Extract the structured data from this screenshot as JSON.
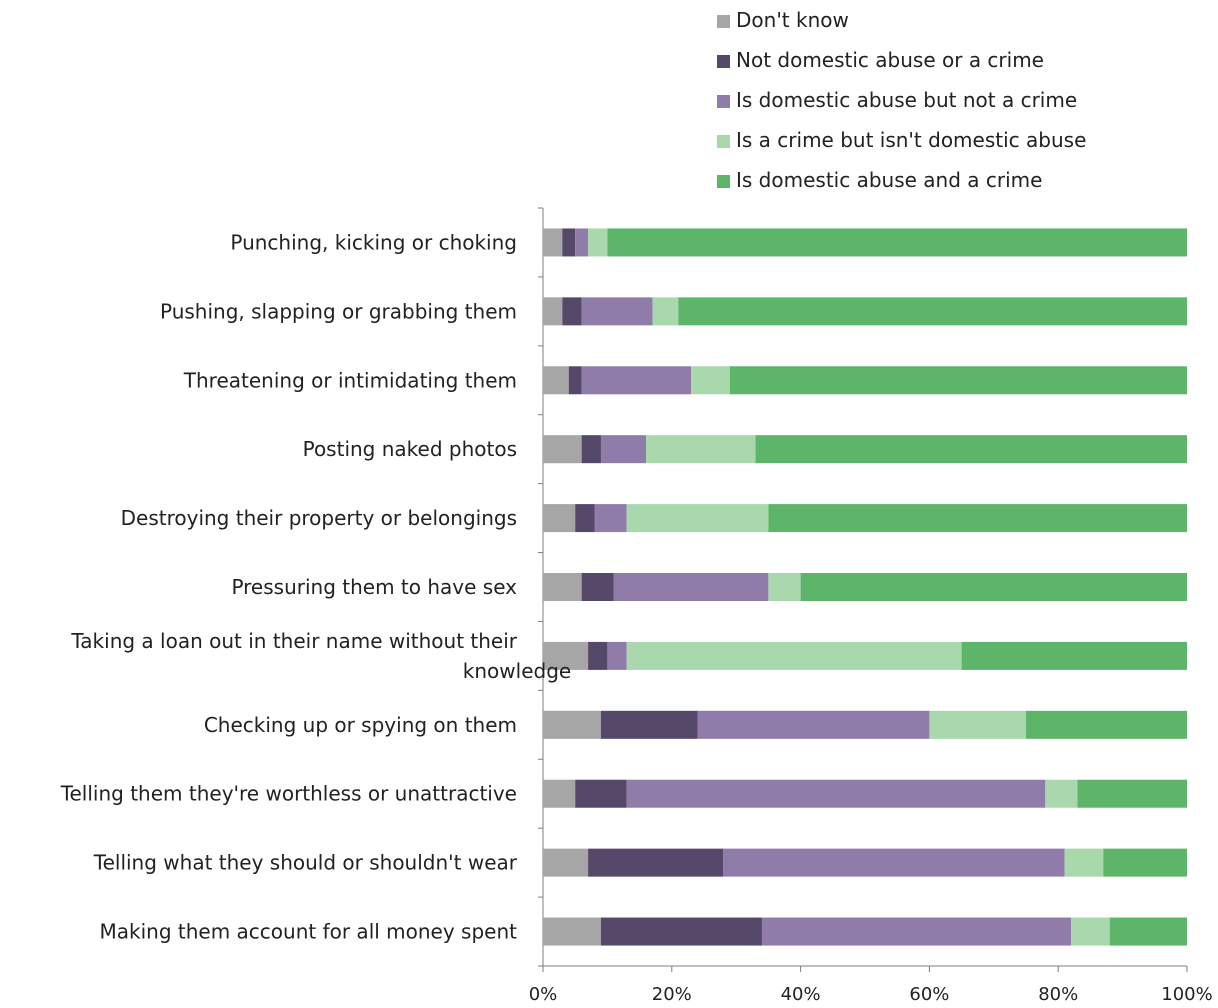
{
  "chart_data": {
    "type": "bar",
    "orientation": "horizontal",
    "stacked": true,
    "title": "",
    "xlabel": "",
    "ylabel": "",
    "xlim": [
      0,
      100
    ],
    "x_ticks": [
      "0%",
      "20%",
      "40%",
      "60%",
      "80%",
      "100%"
    ],
    "grid": false,
    "legend_position": "top-right",
    "categories": [
      "Punching, kicking or choking",
      "Pushing, slapping or grabbing them",
      "Threatening or intimidating them",
      "Posting naked photos",
      "Destroying their property or belongings",
      "Pressuring them to have sex",
      "Taking a loan out in their name without their knowledge",
      "Checking up or spying on them",
      "Telling them they're worthless or unattractive",
      "Telling what they should or shouldn't wear",
      "Making them account for all money spent"
    ],
    "series": [
      {
        "name": "Don't know",
        "color": "#a6a6a6",
        "values": [
          3,
          3,
          4,
          6,
          5,
          6,
          7,
          9,
          5,
          7,
          9
        ]
      },
      {
        "name": "Not domestic abuse or a crime",
        "color": "#564868",
        "values": [
          2,
          3,
          2,
          3,
          3,
          5,
          3,
          15,
          8,
          21,
          25
        ]
      },
      {
        "name": "Is domestic abuse but not a crime",
        "color": "#8f7ca8",
        "values": [
          2,
          11,
          17,
          7,
          5,
          24,
          3,
          36,
          65,
          53,
          48
        ]
      },
      {
        "name": "Is a crime but isn't domestic abuse",
        "color": "#a8d8ac",
        "values": [
          3,
          4,
          6,
          17,
          22,
          5,
          52,
          15,
          5,
          6,
          6
        ]
      },
      {
        "name": "Is domestic abuse and a crime",
        "color": "#5db56a",
        "values": [
          90,
          79,
          71,
          67,
          65,
          60,
          35,
          25,
          17,
          13,
          12
        ]
      }
    ],
    "legend_order": [
      0,
      1,
      2,
      3,
      4
    ]
  }
}
